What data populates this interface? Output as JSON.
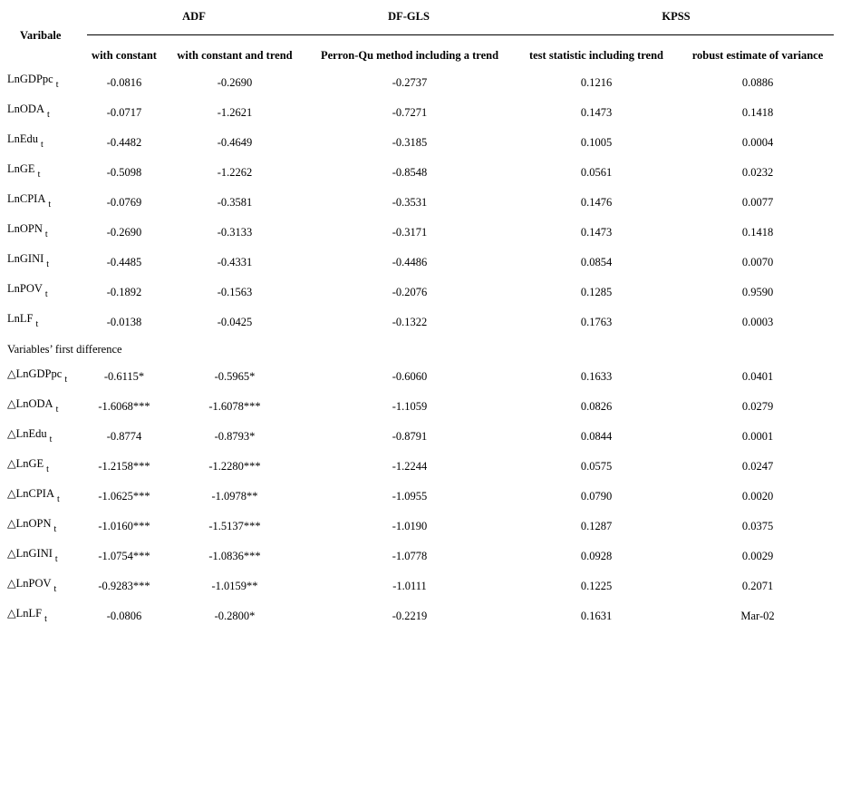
{
  "table": {
    "row_header": "Varibale",
    "groups": [
      {
        "label": "ADF"
      },
      {
        "label": "DF-GLS"
      },
      {
        "label": "KPSS"
      }
    ],
    "columns": [
      "with constant",
      "with constant and trend",
      "Perron-Qu method including a trend",
      "test statistic including trend",
      "robust estimate of variance"
    ],
    "levels": [
      {
        "var": "LnGDPpc",
        "sub": "t",
        "values": [
          "-0.0816",
          "-0.2690",
          "-0.2737",
          "0.1216",
          "0.0886"
        ]
      },
      {
        "var": "LnODA",
        "sub": "t",
        "values": [
          "-0.0717",
          "-1.2621",
          "-0.7271",
          "0.1473",
          "0.1418"
        ]
      },
      {
        "var": "LnEdu",
        "sub": "t",
        "values": [
          "-0.4482",
          "-0.4649",
          "-0.3185",
          "0.1005",
          "0.0004"
        ]
      },
      {
        "var": "LnGE",
        "sub": "t",
        "values": [
          "-0.5098",
          "-1.2262",
          "-0.8548",
          "0.0561",
          "0.0232"
        ]
      },
      {
        "var": "LnCPIA",
        "sub": "t",
        "values": [
          "-0.0769",
          "-0.3581",
          "-0.3531",
          "0.1476",
          "0.0077"
        ]
      },
      {
        "var": "LnOPN",
        "sub": "t",
        "values": [
          "-0.2690",
          "-0.3133",
          "-0.3171",
          "0.1473",
          "0.1418"
        ]
      },
      {
        "var": "LnGINI",
        "sub": "t",
        "values": [
          "-0.4485",
          "-0.4331",
          "-0.4486",
          "0.0854",
          "0.0070"
        ]
      },
      {
        "var": "LnPOV",
        "sub": "t",
        "values": [
          "-0.1892",
          "-0.1563",
          "-0.2076",
          "0.1285",
          "0.9590"
        ]
      },
      {
        "var": "LnLF",
        "sub": "t",
        "values": [
          "-0.0138",
          "-0.0425",
          "-0.1322",
          "0.1763",
          "0.0003"
        ]
      }
    ],
    "section_label": "Variables’ first difference",
    "differences": [
      {
        "var": "△LnGDPpc",
        "sub": "t",
        "values": [
          "-0.6115*",
          "-0.5965*",
          "-0.6060",
          "0.1633",
          "0.0401"
        ]
      },
      {
        "var": "△LnODA",
        "sub": "t",
        "values": [
          "-1.6068***",
          "-1.6078***",
          "-1.1059",
          "0.0826",
          "0.0279"
        ]
      },
      {
        "var": "△LnEdu",
        "sub": "t",
        "values": [
          "-0.8774",
          "-0.8793*",
          "-0.8791",
          "0.0844",
          "0.0001"
        ]
      },
      {
        "var": "△LnGE",
        "sub": "t",
        "values": [
          "-1.2158***",
          "-1.2280***",
          "-1.2244",
          "0.0575",
          "0.0247"
        ]
      },
      {
        "var": "△LnCPIA",
        "sub": "t",
        "values": [
          "-1.0625***",
          "-1.0978**",
          "-1.0955",
          "0.0790",
          "0.0020"
        ]
      },
      {
        "var": "△LnOPN",
        "sub": "t",
        "values": [
          "-1.0160***",
          "-1.5137***",
          "-1.0190",
          "0.1287",
          "0.0375"
        ]
      },
      {
        "var": "△LnGINI",
        "sub": "t",
        "values": [
          "-1.0754***",
          "-1.0836***",
          "-1.0778",
          "0.0928",
          "0.0029"
        ]
      },
      {
        "var": "△LnPOV",
        "sub": "t",
        "values": [
          "-0.9283***",
          "-1.0159**",
          "-1.0111",
          "0.1225",
          "0.2071"
        ]
      },
      {
        "var": "△LnLF",
        "sub": "t",
        "values": [
          "-0.0806",
          "-0.2800*",
          "-0.2219",
          "0.1631",
          "Mar-02"
        ]
      }
    ]
  }
}
